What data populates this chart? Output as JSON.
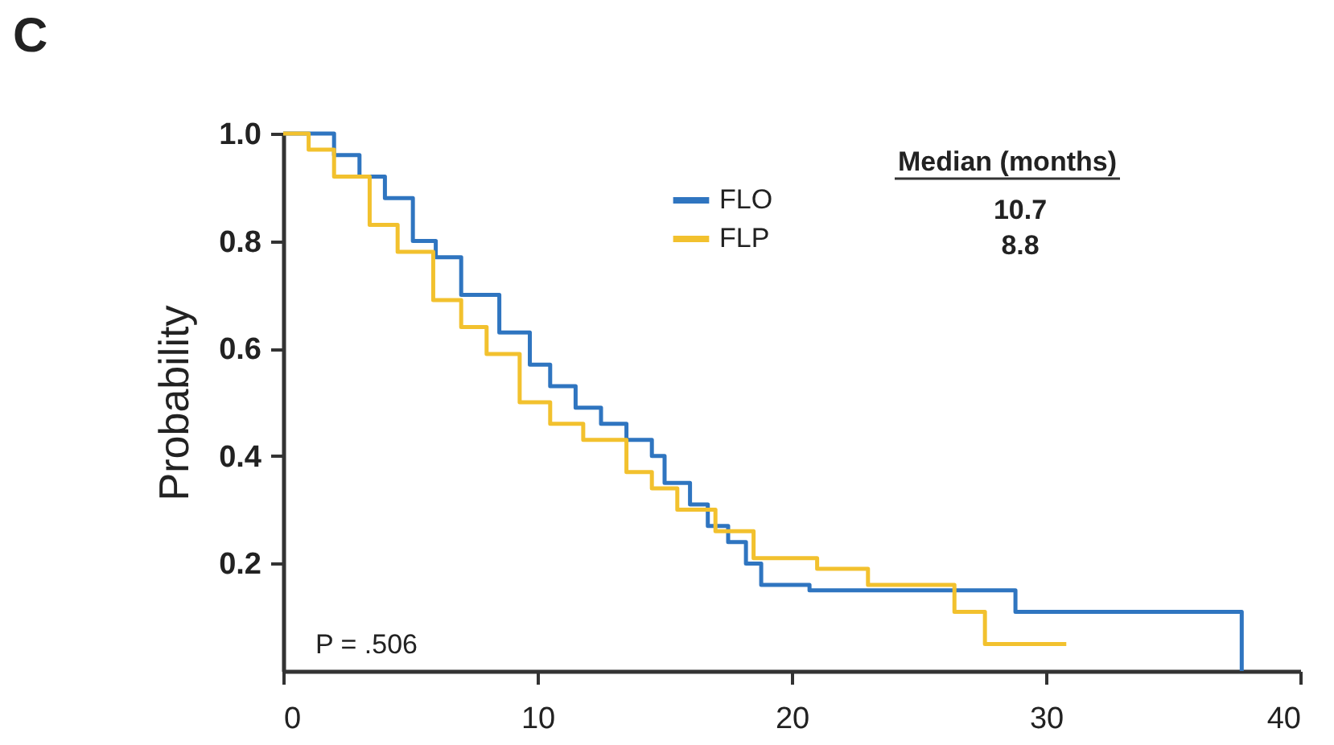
{
  "chart_data": {
    "type": "step",
    "title": "C",
    "ylabel": "Probability",
    "xlim": [
      0,
      40
    ],
    "xticks": [
      0,
      10,
      20,
      30,
      40
    ],
    "ylim": [
      0,
      1.0
    ],
    "yticks": [
      {
        "value": 0.2,
        "label": "0.2"
      },
      {
        "value": 0.4,
        "label": "0.4"
      },
      {
        "value": 0.6,
        "label": "0.6"
      },
      {
        "value": 0.8,
        "label": "0.8"
      },
      {
        "value": 1.0,
        "label": "1.0"
      }
    ],
    "grid": false,
    "legend": "top",
    "marker": "none",
    "line_style": "solid",
    "series": [
      {
        "name": "FLO",
        "color": "#2f75c0",
        "x": [
          0,
          1,
          2,
          3,
          4,
          5.1,
          6,
          7,
          8.5,
          9.7,
          10.5,
          11.5,
          12.5,
          13.5,
          14.5,
          15,
          16,
          16.7,
          17.5,
          18.2,
          18.8,
          20.7,
          28.8,
          37.7
        ],
        "values": [
          1.0,
          1.0,
          0.96,
          0.92,
          0.88,
          0.8,
          0.77,
          0.7,
          0.63,
          0.57,
          0.53,
          0.49,
          0.46,
          0.43,
          0.4,
          0.35,
          0.31,
          0.27,
          0.24,
          0.2,
          0.16,
          0.15,
          0.11,
          0
        ]
      },
      {
        "name": "FLP",
        "color": "#f2c12e",
        "x": [
          0,
          1,
          2,
          3.4,
          4.5,
          5.9,
          7,
          8,
          9.3,
          10.5,
          11.8,
          13.5,
          14.5,
          15.5,
          17,
          18.5,
          21,
          23,
          26.4,
          27.6,
          30.8
        ],
        "values": [
          1.0,
          0.97,
          0.92,
          0.83,
          0.78,
          0.69,
          0.64,
          0.59,
          0.5,
          0.46,
          0.43,
          0.37,
          0.34,
          0.3,
          0.26,
          0.21,
          0.19,
          0.16,
          0.11,
          0.05,
          0.05
        ]
      }
    ],
    "annotations": [
      "Median (months)",
      "10.7",
      "8.8",
      "P = .506"
    ]
  }
}
